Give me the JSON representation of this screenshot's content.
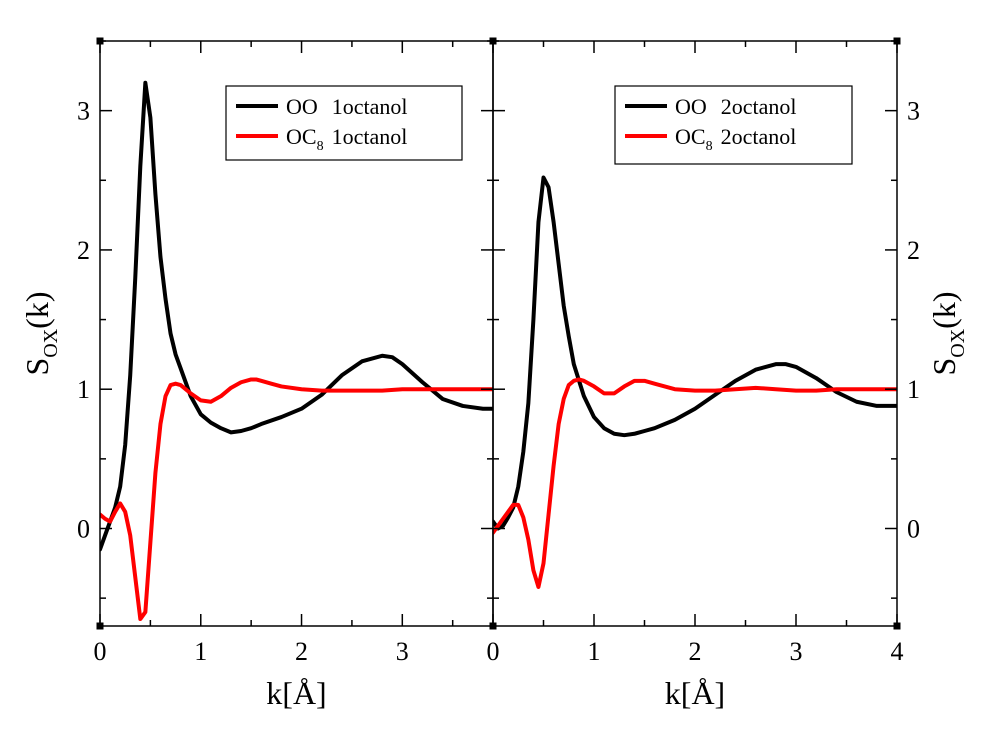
{
  "chart_data": [
    {
      "type": "line",
      "panel": "left",
      "xlabel": "k[Å]",
      "ylabel_main": "S",
      "ylabel_sub": "OX",
      "ylabel_suffix": "(k)",
      "xlim": [
        0,
        3.9
      ],
      "ylim": [
        -0.7,
        3.5
      ],
      "xticks": [
        0,
        1,
        2,
        3
      ],
      "xtick_labels": [
        "0",
        "1",
        "2",
        "3"
      ],
      "yticks": [
        0,
        1,
        2,
        3
      ],
      "ytick_labels": [
        "0",
        "1",
        "2",
        "3"
      ],
      "legend_position": "top-right",
      "series": [
        {
          "name": "OO",
          "legend_main": "OO",
          "legend_sub": "",
          "legend_suffix": "1octanol",
          "color": "#000000",
          "x": [
            0.0,
            0.05,
            0.1,
            0.15,
            0.2,
            0.25,
            0.3,
            0.35,
            0.4,
            0.45,
            0.5,
            0.55,
            0.6,
            0.65,
            0.7,
            0.75,
            0.8,
            0.9,
            1.0,
            1.1,
            1.2,
            1.3,
            1.4,
            1.5,
            1.6,
            1.8,
            2.0,
            2.2,
            2.4,
            2.6,
            2.8,
            2.9,
            3.0,
            3.2,
            3.4,
            3.6,
            3.8,
            3.9
          ],
          "y": [
            -0.15,
            -0.05,
            0.05,
            0.15,
            0.3,
            0.6,
            1.1,
            1.8,
            2.6,
            3.2,
            2.95,
            2.4,
            1.95,
            1.65,
            1.4,
            1.25,
            1.15,
            0.95,
            0.82,
            0.76,
            0.72,
            0.69,
            0.7,
            0.72,
            0.75,
            0.8,
            0.86,
            0.96,
            1.1,
            1.2,
            1.24,
            1.23,
            1.18,
            1.05,
            0.93,
            0.88,
            0.86,
            0.86
          ]
        },
        {
          "name": "OC8",
          "legend_main": "OC",
          "legend_sub": "8",
          "legend_suffix": "1octanol",
          "color": "#ff0000",
          "x": [
            0.0,
            0.05,
            0.1,
            0.15,
            0.2,
            0.25,
            0.3,
            0.35,
            0.4,
            0.45,
            0.5,
            0.55,
            0.6,
            0.65,
            0.7,
            0.75,
            0.8,
            0.9,
            1.0,
            1.1,
            1.2,
            1.3,
            1.4,
            1.5,
            1.55,
            1.6,
            1.7,
            1.8,
            2.0,
            2.2,
            2.4,
            2.6,
            2.8,
            3.0,
            3.2,
            3.4,
            3.6,
            3.8,
            3.9
          ],
          "y": [
            0.1,
            0.07,
            0.05,
            0.12,
            0.18,
            0.12,
            -0.05,
            -0.35,
            -0.65,
            -0.6,
            -0.1,
            0.4,
            0.75,
            0.95,
            1.03,
            1.04,
            1.03,
            0.97,
            0.92,
            0.91,
            0.95,
            1.01,
            1.05,
            1.07,
            1.07,
            1.06,
            1.04,
            1.02,
            1.0,
            0.99,
            0.99,
            0.99,
            0.99,
            1.0,
            1.0,
            1.0,
            1.0,
            1.0,
            1.0
          ]
        }
      ]
    },
    {
      "type": "line",
      "panel": "right",
      "xlabel": "k[Å]",
      "ylabel_main": "S",
      "ylabel_sub": "OX",
      "ylabel_suffix": "(k)",
      "xlim": [
        0,
        4
      ],
      "ylim": [
        -0.7,
        3.5
      ],
      "xticks": [
        0,
        1,
        2,
        3,
        4
      ],
      "xtick_labels": [
        "0",
        "1",
        "2",
        "3",
        "4"
      ],
      "yticks": [
        0,
        1,
        2,
        3
      ],
      "ytick_labels": [
        "0",
        "1",
        "2",
        "3"
      ],
      "legend_position": "top-right",
      "series": [
        {
          "name": "OO",
          "legend_main": "OO",
          "legend_sub": "",
          "legend_suffix": "2octanol",
          "color": "#000000",
          "x": [
            0.0,
            0.05,
            0.1,
            0.15,
            0.2,
            0.25,
            0.3,
            0.35,
            0.4,
            0.45,
            0.5,
            0.55,
            0.6,
            0.65,
            0.7,
            0.75,
            0.8,
            0.9,
            1.0,
            1.1,
            1.2,
            1.3,
            1.4,
            1.5,
            1.6,
            1.8,
            2.0,
            2.2,
            2.4,
            2.6,
            2.8,
            2.9,
            3.0,
            3.2,
            3.4,
            3.6,
            3.8,
            4.0
          ],
          "y": [
            0.05,
            0.0,
            0.02,
            0.08,
            0.15,
            0.3,
            0.55,
            0.9,
            1.5,
            2.2,
            2.52,
            2.45,
            2.2,
            1.9,
            1.6,
            1.38,
            1.18,
            0.95,
            0.8,
            0.72,
            0.68,
            0.67,
            0.68,
            0.7,
            0.72,
            0.78,
            0.86,
            0.96,
            1.06,
            1.14,
            1.18,
            1.18,
            1.16,
            1.08,
            0.98,
            0.91,
            0.88,
            0.88
          ]
        },
        {
          "name": "OC8",
          "legend_main": "OC",
          "legend_sub": "8",
          "legend_suffix": "2octanol",
          "color": "#ff0000",
          "x": [
            0.0,
            0.05,
            0.1,
            0.15,
            0.2,
            0.25,
            0.3,
            0.35,
            0.4,
            0.45,
            0.5,
            0.55,
            0.6,
            0.65,
            0.7,
            0.75,
            0.8,
            0.85,
            0.9,
            1.0,
            1.1,
            1.2,
            1.3,
            1.4,
            1.5,
            1.6,
            1.7,
            1.8,
            2.0,
            2.2,
            2.4,
            2.6,
            2.8,
            3.0,
            3.2,
            3.4,
            3.6,
            3.8,
            4.0
          ],
          "y": [
            -0.03,
            0.02,
            0.07,
            0.12,
            0.17,
            0.17,
            0.08,
            -0.08,
            -0.3,
            -0.42,
            -0.25,
            0.1,
            0.45,
            0.75,
            0.93,
            1.03,
            1.06,
            1.07,
            1.06,
            1.02,
            0.97,
            0.97,
            1.02,
            1.06,
            1.06,
            1.04,
            1.02,
            1.0,
            0.99,
            0.99,
            1.0,
            1.01,
            1.0,
            0.99,
            0.99,
            1.0,
            1.0,
            1.0,
            1.0
          ]
        }
      ]
    }
  ]
}
